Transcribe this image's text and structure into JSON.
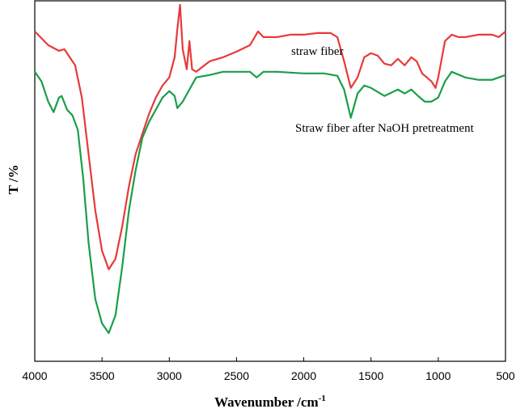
{
  "chart_data": {
    "type": "line",
    "ylabel": "T /%",
    "xlabel": {
      "text": "Wavenumber /cm",
      "superscript": "-1"
    },
    "xlim": [
      4000,
      500
    ],
    "xticks": [
      4000,
      3500,
      3000,
      2500,
      2000,
      1500,
      1000,
      500
    ],
    "ylim": [
      0,
      447
    ],
    "series": [
      {
        "name": "straw fiber",
        "color": "#e8393a",
        "x": [
          4000,
          3900,
          3820,
          3780,
          3740,
          3700,
          3650,
          3600,
          3550,
          3500,
          3450,
          3400,
          3350,
          3300,
          3250,
          3200,
          3150,
          3100,
          3050,
          3000,
          2960,
          2940,
          2920,
          2900,
          2870,
          2850,
          2830,
          2800,
          2700,
          2600,
          2500,
          2400,
          2340,
          2300,
          2200,
          2100,
          2000,
          1900,
          1800,
          1750,
          1700,
          1650,
          1600,
          1550,
          1500,
          1450,
          1400,
          1350,
          1300,
          1250,
          1200,
          1160,
          1120,
          1050,
          1020,
          1000,
          950,
          900,
          850,
          800,
          700,
          600,
          550,
          500
        ],
        "values": [
          409,
          392,
          385,
          387,
          377,
          367,
          327,
          257,
          187,
          137,
          114,
          127,
          167,
          217,
          257,
          282,
          307,
          327,
          342,
          352,
          377,
          412,
          442,
          387,
          362,
          397,
          362,
          359,
          372,
          377,
          384,
          392,
          409,
          402,
          402,
          405,
          405,
          407,
          407,
          402,
          372,
          339,
          352,
          377,
          382,
          379,
          369,
          367,
          375,
          367,
          377,
          372,
          357,
          347,
          339,
          352,
          397,
          405,
          402,
          402,
          405,
          405,
          402,
          409
        ]
      },
      {
        "name": "Straw fiber after NaOH pretreatment",
        "color": "#1a9e4a",
        "x": [
          4000,
          3950,
          3900,
          3860,
          3820,
          3800,
          3760,
          3720,
          3680,
          3640,
          3600,
          3550,
          3500,
          3450,
          3400,
          3350,
          3300,
          3250,
          3200,
          3150,
          3100,
          3050,
          3000,
          2960,
          2940,
          2900,
          2850,
          2800,
          2700,
          2600,
          2500,
          2400,
          2350,
          2300,
          2200,
          2000,
          1850,
          1750,
          1700,
          1650,
          1600,
          1550,
          1500,
          1400,
          1300,
          1250,
          1200,
          1150,
          1100,
          1050,
          1000,
          950,
          900,
          800,
          700,
          600,
          500
        ],
        "values": [
          359,
          347,
          322,
          309,
          327,
          329,
          312,
          305,
          287,
          227,
          147,
          77,
          47,
          35,
          57,
          117,
          187,
          237,
          277,
          297,
          312,
          327,
          335,
          329,
          314,
          322,
          337,
          352,
          355,
          359,
          359,
          359,
          352,
          359,
          359,
          357,
          357,
          354,
          337,
          302,
          332,
          342,
          339,
          329,
          337,
          332,
          337,
          329,
          322,
          322,
          327,
          347,
          359,
          352,
          349,
          349,
          355
        ]
      }
    ]
  }
}
